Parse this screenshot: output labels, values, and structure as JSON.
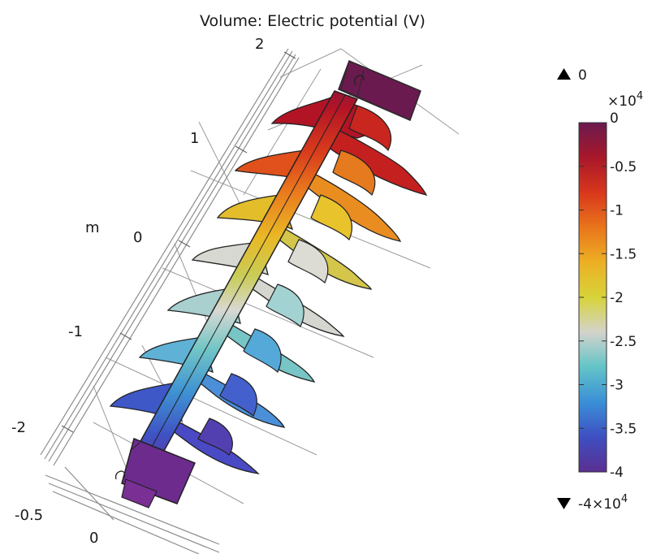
{
  "plot": {
    "title": "Volume: Electric potential (V)",
    "unit_label": "m",
    "axis_ticks": [
      "2",
      "1",
      "0",
      "-1",
      "-2"
    ],
    "base_ticks": [
      "-0.5",
      "0"
    ]
  },
  "colorbar": {
    "max_marker": "0",
    "exponent_top": "×10",
    "exponent_power_top": "4",
    "ticks": [
      "0",
      "-0.5",
      "-1",
      "-1.5",
      "-2",
      "-2.5",
      "-3",
      "-3.5",
      "-4"
    ],
    "min_marker": "-4×10",
    "min_marker_power": "4",
    "colors": [
      "#6a1a4e",
      "#a8182a",
      "#d8371c",
      "#e9751b",
      "#ecb024",
      "#d7d33a",
      "#d3d3cb",
      "#62c4c8",
      "#3a8fd6",
      "#3e4fc2",
      "#5b2f91"
    ]
  }
}
